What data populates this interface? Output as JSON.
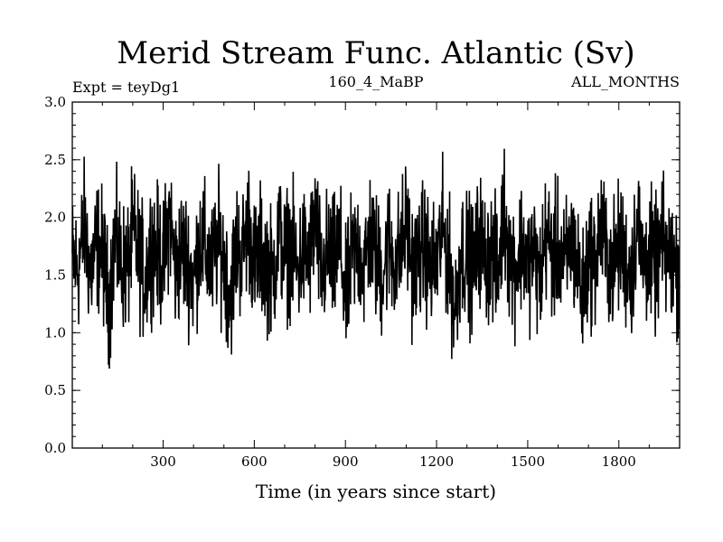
{
  "chart_data": {
    "type": "line",
    "title": "Merid Stream Func. Atlantic (Sv)",
    "subtitle_left": "Expt = teyDg1",
    "subtitle_center": "160_4_MaBP",
    "subtitle_right": "ALL_MONTHS",
    "xlabel": "Time (in years since start)",
    "ylabel": "",
    "xlim": [
      1,
      2000
    ],
    "ylim": [
      0.0,
      3.0
    ],
    "xticks": [
      300,
      600,
      900,
      1200,
      1500,
      1800
    ],
    "yticks": [
      0.0,
      0.5,
      1.0,
      1.5,
      2.0,
      2.5,
      3.0
    ],
    "ytick_labels": [
      "0.0",
      "0.5",
      "1.0",
      "1.5",
      "2.0",
      "2.5",
      "3.0"
    ],
    "grid": false,
    "legend": "none",
    "line_color": "#000000",
    "series": [
      {
        "mean": 1.65,
        "values_every_20_years": [
          1.62,
          1.48,
          2.21,
          1.35,
          1.87,
          1.72,
          0.85,
          1.95,
          1.58,
          1.41,
          2.08,
          1.66,
          1.25,
          1.92,
          1.75,
          1.52,
          2.45,
          1.38,
          1.81,
          1.61,
          1.22,
          2.02,
          1.71,
          1.47,
          1.97,
          1.58,
          0.95,
          1.86,
          1.69,
          2.31,
          1.45,
          1.78,
          1.56,
          1.33,
          2.11,
          1.64,
          1.88,
          1.42,
          1.77,
          1.6,
          2.35,
          1.29,
          1.73,
          1.51,
          1.94,
          0.88,
          1.69,
          1.82,
          1.47,
          2.05,
          1.63,
          1.36,
          1.91,
          1.58,
          1.74,
          2.28,
          1.44,
          1.67,
          1.85,
          1.39,
          1.62,
          2.12,
          1.55,
          0.72,
          1.79,
          1.68,
          1.43,
          2.03,
          1.59,
          1.76,
          1.31,
          2.49,
          1.65,
          1.48,
          1.89,
          1.57,
          1.72,
          1.26,
          2.09,
          1.66,
          1.83,
          1.41,
          1.96,
          1.63,
          0.93,
          1.75,
          1.54,
          2.18,
          1.69,
          1.45,
          1.87,
          1.61,
          1.35,
          2.25,
          1.58,
          1.71,
          1.49,
          1.93,
          1.64,
          1.52
        ]
      }
    ]
  }
}
